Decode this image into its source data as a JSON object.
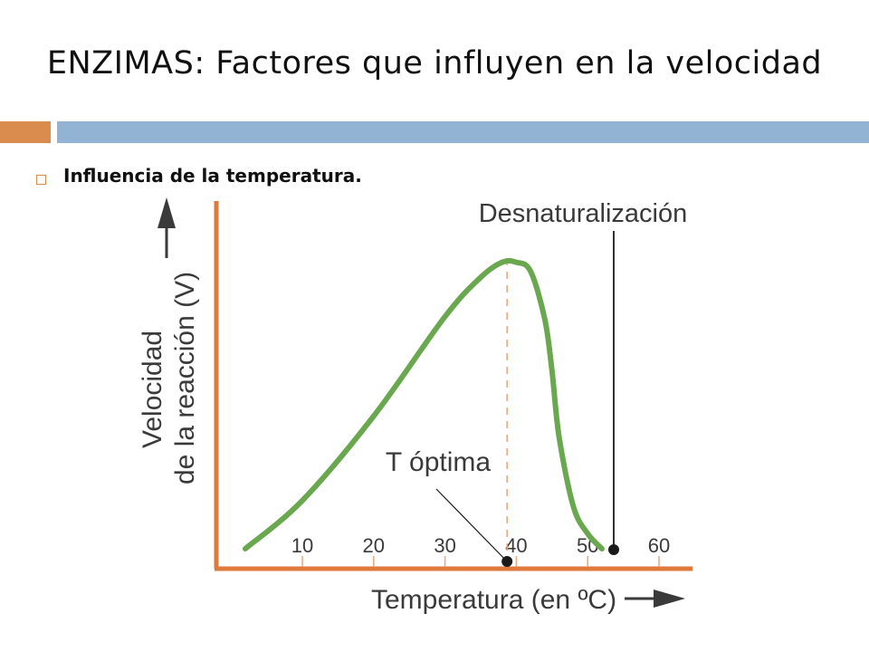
{
  "slide": {
    "title": "ENZIMAS: Factores que influyen en la velocidad",
    "bullet": "Influencia de la temperatura."
  },
  "colors": {
    "accent_orange": "#d98c4e",
    "accent_blue": "#93b3d4",
    "curve_green": "#6aa84f",
    "axis_orange": "#e07a3c",
    "text_dark": "#3a3a3a"
  },
  "chart_data": {
    "type": "line",
    "xlabel": "Temperatura (en ºC)",
    "ylabel_line1": "Velocidad",
    "ylabel_line2": "de la reacción (V)",
    "x_ticks": [
      10,
      20,
      30,
      40,
      50,
      60
    ],
    "xlim": [
      0,
      65
    ],
    "ylim": [
      0,
      1
    ],
    "y_ticks_shown": false,
    "series": [
      {
        "x": [
          2,
          10,
          20,
          30,
          35,
          38,
          40,
          42,
          44,
          45,
          46,
          48,
          50,
          52
        ],
        "y": [
          0.03,
          0.19,
          0.47,
          0.8,
          0.93,
          0.98,
          0.98,
          0.95,
          0.79,
          0.62,
          0.4,
          0.17,
          0.08,
          0.03
        ]
      }
    ],
    "annotations": [
      {
        "label": "T óptima",
        "x": 38.7,
        "y": 0,
        "marker": "dot",
        "vline_dashed": true
      },
      {
        "label": "Desnaturalización",
        "x": 53,
        "y": 0.03,
        "marker": "dot",
        "vline_solid": true
      }
    ]
  }
}
